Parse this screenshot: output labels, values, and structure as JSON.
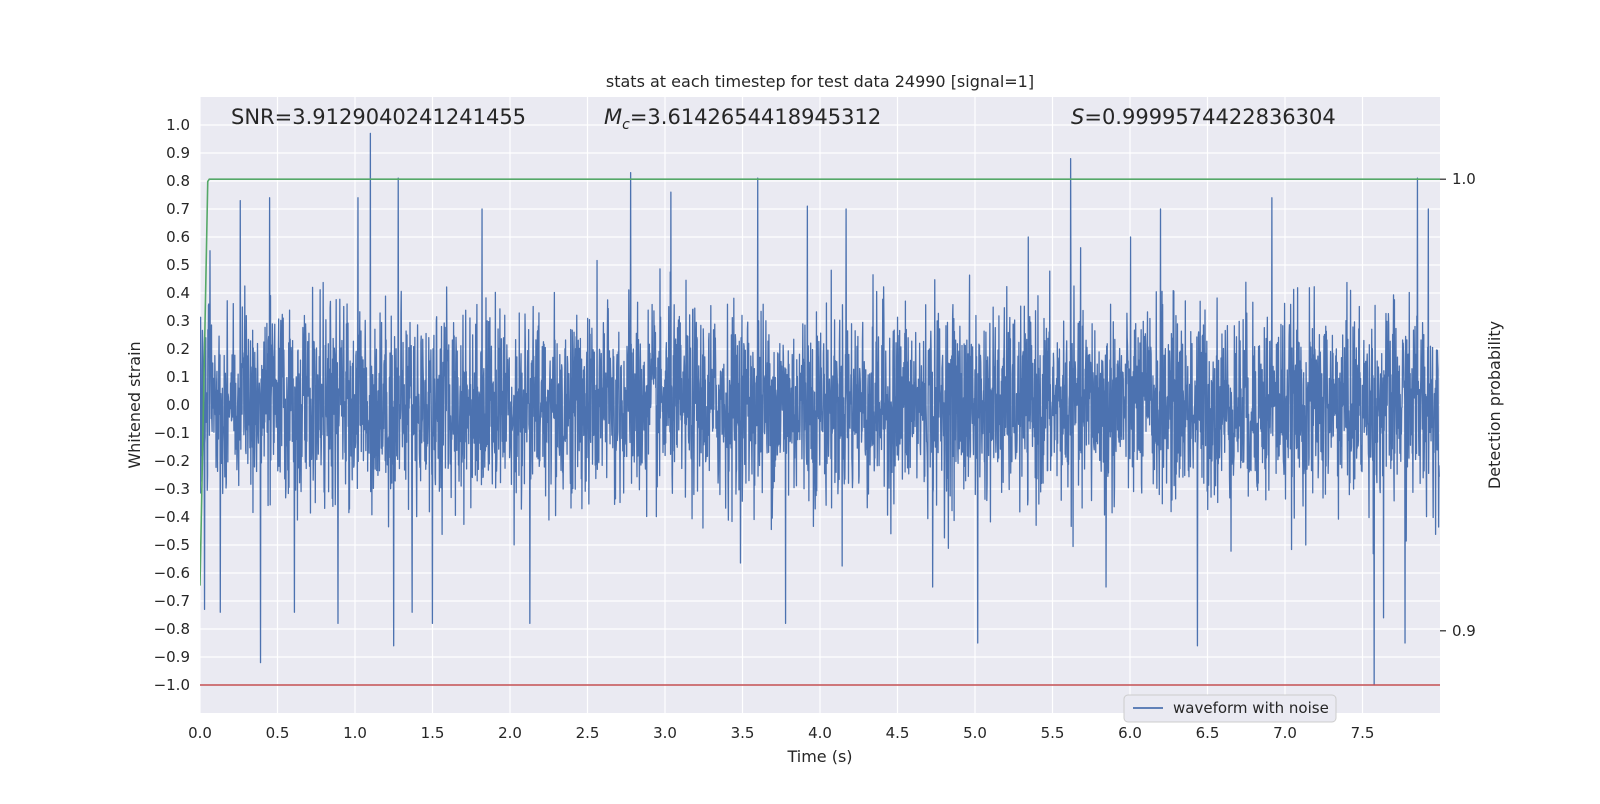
{
  "chart_data": {
    "type": "line",
    "title": "stats at each timestep for test data 24990 [signal=1]",
    "xlabel": "Time (s)",
    "ylabel": "Whitened strain",
    "y2label": "Detection probability",
    "xlim": [
      0.0,
      8.0
    ],
    "ylim": [
      -1.1,
      1.1
    ],
    "y2lim": [
      0.8818,
      1.0182
    ],
    "x_ticks": [
      0.0,
      0.5,
      1.0,
      1.5,
      2.0,
      2.5,
      3.0,
      3.5,
      4.0,
      4.5,
      5.0,
      5.5,
      6.0,
      6.5,
      7.0,
      7.5
    ],
    "x_tick_labels": [
      "0.0",
      "0.5",
      "1.0",
      "1.5",
      "2.0",
      "2.5",
      "3.0",
      "3.5",
      "4.0",
      "4.5",
      "5.0",
      "5.5",
      "6.0",
      "6.5",
      "7.0",
      "7.5"
    ],
    "y_ticks": [
      1.0,
      0.9,
      0.8,
      0.7,
      0.6,
      0.5,
      0.4,
      0.3,
      0.2,
      0.1,
      0.0,
      -0.1,
      -0.2,
      -0.3,
      -0.4,
      -0.5,
      -0.6,
      -0.7,
      -0.8,
      -0.9,
      -1.0
    ],
    "y_tick_labels": [
      "1.0",
      "0.9",
      "0.8",
      "0.7",
      "0.6",
      "0.5",
      "0.4",
      "0.3",
      "0.2",
      "0.1",
      "0.0",
      "−0.1",
      "−0.2",
      "−0.3",
      "−0.4",
      "−0.5",
      "−0.6",
      "−0.7",
      "−0.8",
      "−0.9",
      "−1.0"
    ],
    "y2_ticks": [
      1.0,
      0.9
    ],
    "y2_tick_labels": [
      "1.0",
      "0.9"
    ],
    "grid": true,
    "legend": {
      "position": "lower-right",
      "entries": [
        "waveform with noise"
      ]
    },
    "annotations": {
      "snr": "SNR=3.9129040241241455",
      "mc_symbol": "M",
      "mc_subscript": "c",
      "mc_value": "=3.6142654418945312",
      "s_symbol": "S",
      "s_value": "=0.9999574422836304"
    },
    "colors": {
      "background": "#eaeaf2",
      "grid": "#ffffff",
      "waveform": "#4c72b0",
      "detection_probability": "#55a868",
      "threshold": "#c44e52"
    },
    "series": [
      {
        "name": "waveform with noise",
        "axis": "left",
        "description_stats": {
          "typical_range": [
            -0.45,
            0.45
          ],
          "max": 0.97,
          "min": -1.0
        },
        "spikes": [
          {
            "x": 0.03,
            "y": -0.73
          },
          {
            "x": 0.13,
            "y": -0.74
          },
          {
            "x": 0.26,
            "y": 0.73
          },
          {
            "x": 0.39,
            "y": -0.92
          },
          {
            "x": 0.45,
            "y": 0.74
          },
          {
            "x": 0.61,
            "y": -0.74
          },
          {
            "x": 0.89,
            "y": -0.78
          },
          {
            "x": 1.02,
            "y": 0.74
          },
          {
            "x": 1.1,
            "y": 0.97
          },
          {
            "x": 1.25,
            "y": -0.86
          },
          {
            "x": 1.28,
            "y": 0.81
          },
          {
            "x": 1.37,
            "y": -0.74
          },
          {
            "x": 1.5,
            "y": -0.78
          },
          {
            "x": 1.82,
            "y": 0.7
          },
          {
            "x": 2.13,
            "y": -0.78
          },
          {
            "x": 2.78,
            "y": 0.83
          },
          {
            "x": 3.04,
            "y": 0.76
          },
          {
            "x": 3.6,
            "y": 0.81
          },
          {
            "x": 3.78,
            "y": -0.78
          },
          {
            "x": 3.92,
            "y": 0.71
          },
          {
            "x": 4.17,
            "y": 0.7
          },
          {
            "x": 4.73,
            "y": -0.65
          },
          {
            "x": 5.02,
            "y": -0.85
          },
          {
            "x": 5.62,
            "y": 0.88
          },
          {
            "x": 5.85,
            "y": -0.65
          },
          {
            "x": 6.2,
            "y": 0.7
          },
          {
            "x": 6.44,
            "y": -0.86
          },
          {
            "x": 6.92,
            "y": 0.74
          },
          {
            "x": 7.58,
            "y": -1.0
          },
          {
            "x": 7.64,
            "y": -0.76
          },
          {
            "x": 7.78,
            "y": -0.85
          },
          {
            "x": 7.86,
            "y": 0.81
          },
          {
            "x": 7.93,
            "y": 0.7
          }
        ]
      },
      {
        "name": "",
        "axis": "right",
        "x": [
          0.0,
          0.05,
          0.06,
          8.0
        ],
        "y": [
          0.91,
          0.9995,
          1.0,
          1.0
        ]
      },
      {
        "name": "",
        "axis": "left",
        "x": [
          0.0,
          8.0
        ],
        "y": [
          -1.0,
          -1.0
        ]
      }
    ]
  }
}
